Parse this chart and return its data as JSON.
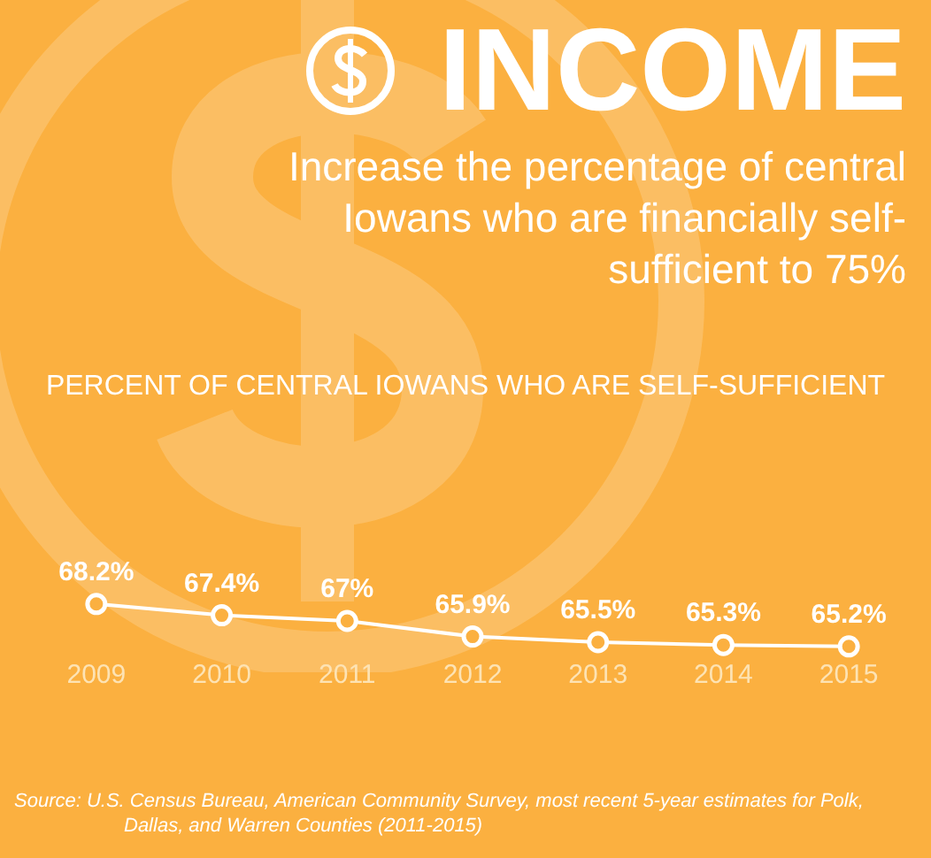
{
  "chart_data": {
    "type": "line",
    "title": "INCOME",
    "subtitle": "Increase the percentage of central Iowans who are financially self-sufficient to 75%",
    "annotations": [
      "PERCENT OF CENTRAL IOWANS WHO ARE SELF-SUFFICIENT",
      "Source: U.S. Census Bureau, American Community Survey, most recent 5-year estimates for Polk, Dallas, and Warren Counties (2011-2015)"
    ],
    "categories": [
      "2009",
      "2010",
      "2011",
      "2012",
      "2013",
      "2014",
      "2015"
    ],
    "series": [
      {
        "color": "#ffffff",
        "values": [
          68.2,
          67.4,
          67,
          65.9,
          65.5,
          65.3,
          65.2
        ],
        "value_labels": [
          "68.2%",
          "67.4%",
          "67%",
          "65.9%",
          "65.5%",
          "65.3%",
          "65.2%"
        ]
      }
    ],
    "tick_labels": "x",
    "grid": false,
    "legend": false,
    "marker": "circle",
    "line_style": "solid"
  }
}
